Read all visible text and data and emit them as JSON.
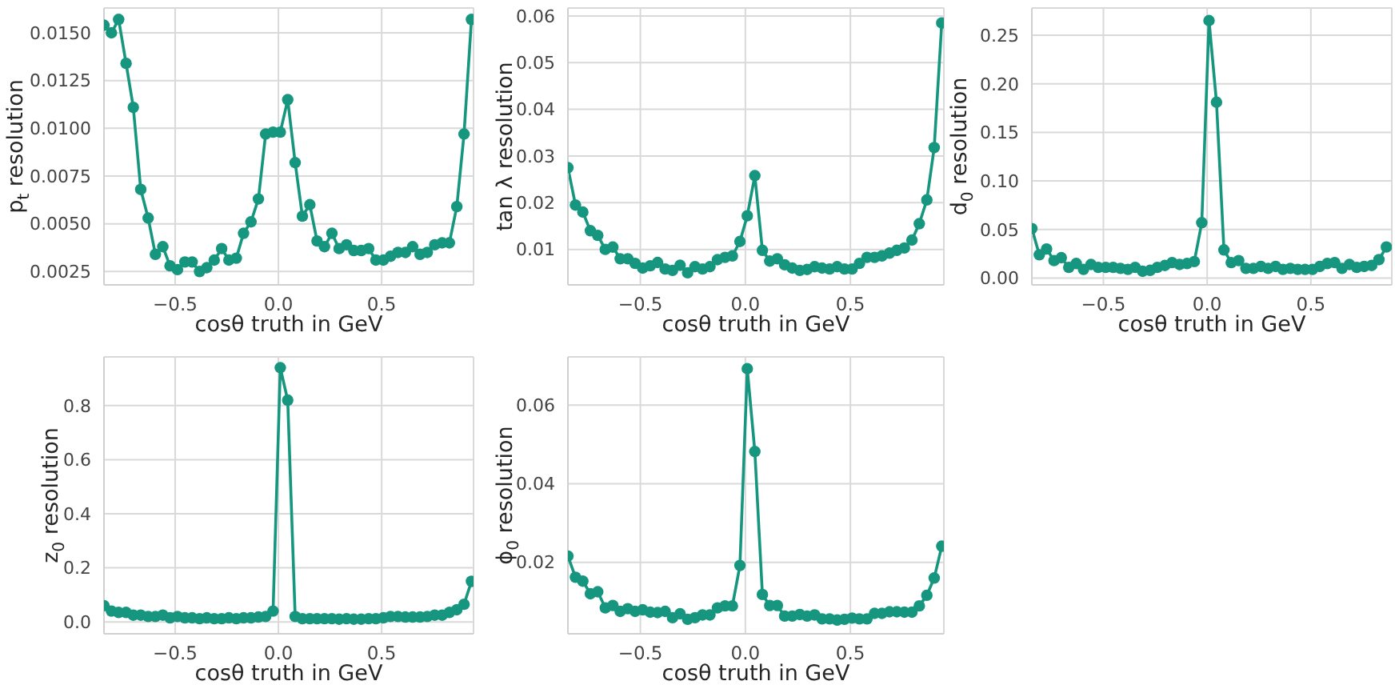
{
  "chart_data": [
    {
      "type": "line",
      "color": "#16967f",
      "marker": "circle",
      "grid": true,
      "xlabel": "cosθ truth in GeV",
      "ylabel": "p$_{t}$ resolution",
      "xlim": [
        -0.845,
        0.945
      ],
      "ylim": [
        0.0018,
        0.0163
      ],
      "xticks": [
        {
          "value": -0.5,
          "label": "−0.5"
        },
        {
          "value": 0,
          "label": "0.0"
        },
        {
          "value": 0.5,
          "label": "0.5"
        }
      ],
      "yticks": [
        {
          "value": 0.0025,
          "label": "0.0025"
        },
        {
          "value": 0.005,
          "label": "0.0050"
        },
        {
          "value": 0.0075,
          "label": "0.0075"
        },
        {
          "value": 0.01,
          "label": "0.0100"
        },
        {
          "value": 0.0125,
          "label": "0.0125"
        },
        {
          "value": 0.015,
          "label": "0.0150"
        }
      ],
      "x": [
        -0.845,
        -0.809,
        -0.774,
        -0.738,
        -0.703,
        -0.667,
        -0.631,
        -0.596,
        -0.56,
        -0.525,
        -0.489,
        -0.453,
        -0.418,
        -0.382,
        -0.347,
        -0.311,
        -0.275,
        -0.24,
        -0.204,
        -0.169,
        -0.133,
        -0.097,
        -0.062,
        -0.026,
        0.009,
        0.045,
        0.081,
        0.116,
        0.152,
        0.187,
        0.223,
        0.259,
        0.294,
        0.33,
        0.365,
        0.401,
        0.437,
        0.472,
        0.508,
        0.543,
        0.579,
        0.615,
        0.65,
        0.686,
        0.721,
        0.757,
        0.793,
        0.828,
        0.864,
        0.899,
        0.935
      ],
      "values": [
        0.0154,
        0.015,
        0.0157,
        0.0134,
        0.0111,
        0.0068,
        0.0053,
        0.0034,
        0.0038,
        0.0028,
        0.0026,
        0.003,
        0.003,
        0.0025,
        0.0027,
        0.0031,
        0.0037,
        0.0031,
        0.0032,
        0.0045,
        0.0051,
        0.0063,
        0.0097,
        0.0098,
        0.0098,
        0.0115,
        0.0082,
        0.0054,
        0.006,
        0.0041,
        0.0038,
        0.0045,
        0.0037,
        0.0039,
        0.0036,
        0.0036,
        0.0037,
        0.0031,
        0.0031,
        0.0033,
        0.0035,
        0.0035,
        0.0038,
        0.0034,
        0.0035,
        0.0039,
        0.004,
        0.004,
        0.0059,
        0.0097,
        0.0157
      ]
    },
    {
      "type": "line",
      "color": "#16967f",
      "marker": "circle",
      "grid": true,
      "xlabel": "cosθ truth in GeV",
      "ylabel": "tan λ resolution",
      "xlim": [
        -0.845,
        0.945
      ],
      "ylim": [
        0.0024,
        0.0617
      ],
      "xticks": [
        {
          "value": -0.5,
          "label": "−0.5"
        },
        {
          "value": 0,
          "label": "0.0"
        },
        {
          "value": 0.5,
          "label": "0.5"
        }
      ],
      "yticks": [
        0.01,
        0.02,
        0.03,
        0.04,
        0.05,
        0.06
      ],
      "x": [
        -0.845,
        -0.809,
        -0.774,
        -0.738,
        -0.703,
        -0.667,
        -0.631,
        -0.596,
        -0.56,
        -0.525,
        -0.489,
        -0.453,
        -0.418,
        -0.382,
        -0.347,
        -0.311,
        -0.275,
        -0.24,
        -0.204,
        -0.169,
        -0.133,
        -0.097,
        -0.062,
        -0.026,
        0.009,
        0.045,
        0.081,
        0.116,
        0.152,
        0.187,
        0.223,
        0.259,
        0.294,
        0.33,
        0.365,
        0.401,
        0.437,
        0.472,
        0.508,
        0.543,
        0.579,
        0.615,
        0.65,
        0.686,
        0.721,
        0.757,
        0.793,
        0.828,
        0.864,
        0.899,
        0.935
      ],
      "values": [
        0.0275,
        0.0195,
        0.018,
        0.014,
        0.013,
        0.01,
        0.0105,
        0.008,
        0.008,
        0.007,
        0.006,
        0.0065,
        0.0072,
        0.0058,
        0.0055,
        0.0066,
        0.005,
        0.0063,
        0.0058,
        0.0063,
        0.0078,
        0.0083,
        0.0086,
        0.0117,
        0.0172,
        0.0258,
        0.0098,
        0.0075,
        0.008,
        0.0067,
        0.006,
        0.0055,
        0.0057,
        0.0063,
        0.006,
        0.0058,
        0.0063,
        0.0058,
        0.0058,
        0.007,
        0.0083,
        0.0083,
        0.0086,
        0.0092,
        0.0098,
        0.0103,
        0.012,
        0.0155,
        0.0206,
        0.0318,
        0.0585
      ]
    },
    {
      "type": "line",
      "color": "#16967f",
      "marker": "circle",
      "grid": true,
      "xlabel": "cosθ truth in GeV",
      "ylabel": "d$_{0}$ resolution",
      "xlim": [
        -0.845,
        0.89
      ],
      "ylim": [
        -0.007,
        0.278
      ],
      "xticks": [
        {
          "value": -0.5,
          "label": "−0.5"
        },
        {
          "value": 0,
          "label": "0.0"
        },
        {
          "value": 0.5,
          "label": "0.5"
        }
      ],
      "yticks": [
        {
          "value": 0,
          "label": "0.00"
        },
        {
          "value": 0.05,
          "label": "0.05"
        },
        {
          "value": 0.1,
          "label": "0.10"
        },
        {
          "value": 0.15,
          "label": "0.15"
        },
        {
          "value": 0.2,
          "label": "0.20"
        },
        {
          "value": 0.25,
          "label": "0.25"
        }
      ],
      "x": [
        -0.845,
        -0.809,
        -0.774,
        -0.738,
        -0.703,
        -0.667,
        -0.631,
        -0.596,
        -0.56,
        -0.525,
        -0.489,
        -0.453,
        -0.418,
        -0.382,
        -0.347,
        -0.311,
        -0.275,
        -0.24,
        -0.204,
        -0.169,
        -0.133,
        -0.097,
        -0.062,
        -0.026,
        0.009,
        0.045,
        0.081,
        0.116,
        0.152,
        0.187,
        0.223,
        0.259,
        0.294,
        0.33,
        0.365,
        0.401,
        0.437,
        0.472,
        0.508,
        0.543,
        0.579,
        0.615,
        0.65,
        0.686,
        0.721,
        0.757,
        0.793,
        0.828,
        0.864
      ],
      "values": [
        0.051,
        0.024,
        0.03,
        0.018,
        0.021,
        0.011,
        0.015,
        0.009,
        0.014,
        0.011,
        0.011,
        0.011,
        0.01,
        0.009,
        0.011,
        0.007,
        0.008,
        0.011,
        0.013,
        0.016,
        0.014,
        0.015,
        0.017,
        0.057,
        0.265,
        0.181,
        0.029,
        0.016,
        0.018,
        0.01,
        0.01,
        0.012,
        0.01,
        0.012,
        0.009,
        0.01,
        0.009,
        0.009,
        0.009,
        0.012,
        0.015,
        0.016,
        0.01,
        0.014,
        0.011,
        0.012,
        0.013,
        0.019,
        0.032
      ]
    },
    {
      "type": "line",
      "color": "#16967f",
      "marker": "circle",
      "grid": true,
      "xlabel": "cosθ truth in GeV",
      "ylabel": "z$_{0}$ resolution",
      "xlim": [
        -0.845,
        0.945
      ],
      "ylim": [
        -0.044,
        0.98
      ],
      "xticks": [
        {
          "value": -0.5,
          "label": "−0.5"
        },
        {
          "value": 0,
          "label": "0.0"
        },
        {
          "value": 0.5,
          "label": "0.5"
        }
      ],
      "yticks": [
        {
          "value": 0,
          "label": "0.0"
        },
        0.2,
        0.4,
        0.6,
        0.8
      ],
      "x": [
        -0.845,
        -0.809,
        -0.774,
        -0.738,
        -0.703,
        -0.667,
        -0.631,
        -0.596,
        -0.56,
        -0.525,
        -0.489,
        -0.453,
        -0.418,
        -0.382,
        -0.347,
        -0.311,
        -0.275,
        -0.24,
        -0.204,
        -0.169,
        -0.133,
        -0.097,
        -0.062,
        -0.026,
        0.009,
        0.045,
        0.081,
        0.116,
        0.152,
        0.187,
        0.223,
        0.259,
        0.294,
        0.33,
        0.365,
        0.401,
        0.437,
        0.472,
        0.508,
        0.543,
        0.579,
        0.615,
        0.65,
        0.686,
        0.721,
        0.757,
        0.793,
        0.828,
        0.864,
        0.899,
        0.935
      ],
      "values": [
        0.06,
        0.04,
        0.035,
        0.035,
        0.025,
        0.025,
        0.02,
        0.02,
        0.025,
        0.015,
        0.02,
        0.015,
        0.015,
        0.012,
        0.015,
        0.012,
        0.012,
        0.015,
        0.012,
        0.015,
        0.015,
        0.018,
        0.02,
        0.04,
        0.94,
        0.82,
        0.02,
        0.012,
        0.012,
        0.012,
        0.012,
        0.012,
        0.01,
        0.012,
        0.01,
        0.01,
        0.012,
        0.012,
        0.015,
        0.02,
        0.02,
        0.018,
        0.018,
        0.018,
        0.02,
        0.025,
        0.025,
        0.035,
        0.045,
        0.065,
        0.15
      ]
    },
    {
      "type": "line",
      "color": "#16967f",
      "marker": "circle",
      "grid": true,
      "xlabel": "cosθ truth in GeV",
      "ylabel": "ϕ$_{0}$ resolution",
      "xlim": [
        -0.845,
        0.945
      ],
      "ylim": [
        0.0018,
        0.0723
      ],
      "xticks": [
        {
          "value": -0.5,
          "label": "−0.5"
        },
        {
          "value": 0,
          "label": "0.0"
        },
        {
          "value": 0.5,
          "label": "0.5"
        }
      ],
      "yticks": [
        0.02,
        0.04,
        0.06
      ],
      "x": [
        -0.845,
        -0.809,
        -0.774,
        -0.738,
        -0.703,
        -0.667,
        -0.631,
        -0.596,
        -0.56,
        -0.525,
        -0.489,
        -0.453,
        -0.418,
        -0.382,
        -0.347,
        -0.311,
        -0.275,
        -0.24,
        -0.204,
        -0.169,
        -0.133,
        -0.097,
        -0.062,
        -0.026,
        0.009,
        0.045,
        0.081,
        0.116,
        0.152,
        0.187,
        0.223,
        0.259,
        0.294,
        0.33,
        0.365,
        0.401,
        0.437,
        0.472,
        0.508,
        0.543,
        0.579,
        0.615,
        0.65,
        0.686,
        0.721,
        0.757,
        0.793,
        0.828,
        0.864,
        0.899,
        0.935
      ],
      "values": [
        0.0216,
        0.0162,
        0.0152,
        0.012,
        0.0125,
        0.0084,
        0.009,
        0.0075,
        0.0082,
        0.0075,
        0.0079,
        0.0073,
        0.0072,
        0.0075,
        0.0059,
        0.0069,
        0.0055,
        0.0059,
        0.0066,
        0.0066,
        0.0084,
        0.0089,
        0.0089,
        0.0192,
        0.0693,
        0.0482,
        0.0118,
        0.009,
        0.009,
        0.0063,
        0.0063,
        0.0067,
        0.0063,
        0.0066,
        0.0056,
        0.0056,
        0.0053,
        0.0055,
        0.0058,
        0.0056,
        0.0056,
        0.007,
        0.007,
        0.0074,
        0.0074,
        0.0073,
        0.0073,
        0.0089,
        0.0116,
        0.016,
        0.0241
      ]
    }
  ]
}
